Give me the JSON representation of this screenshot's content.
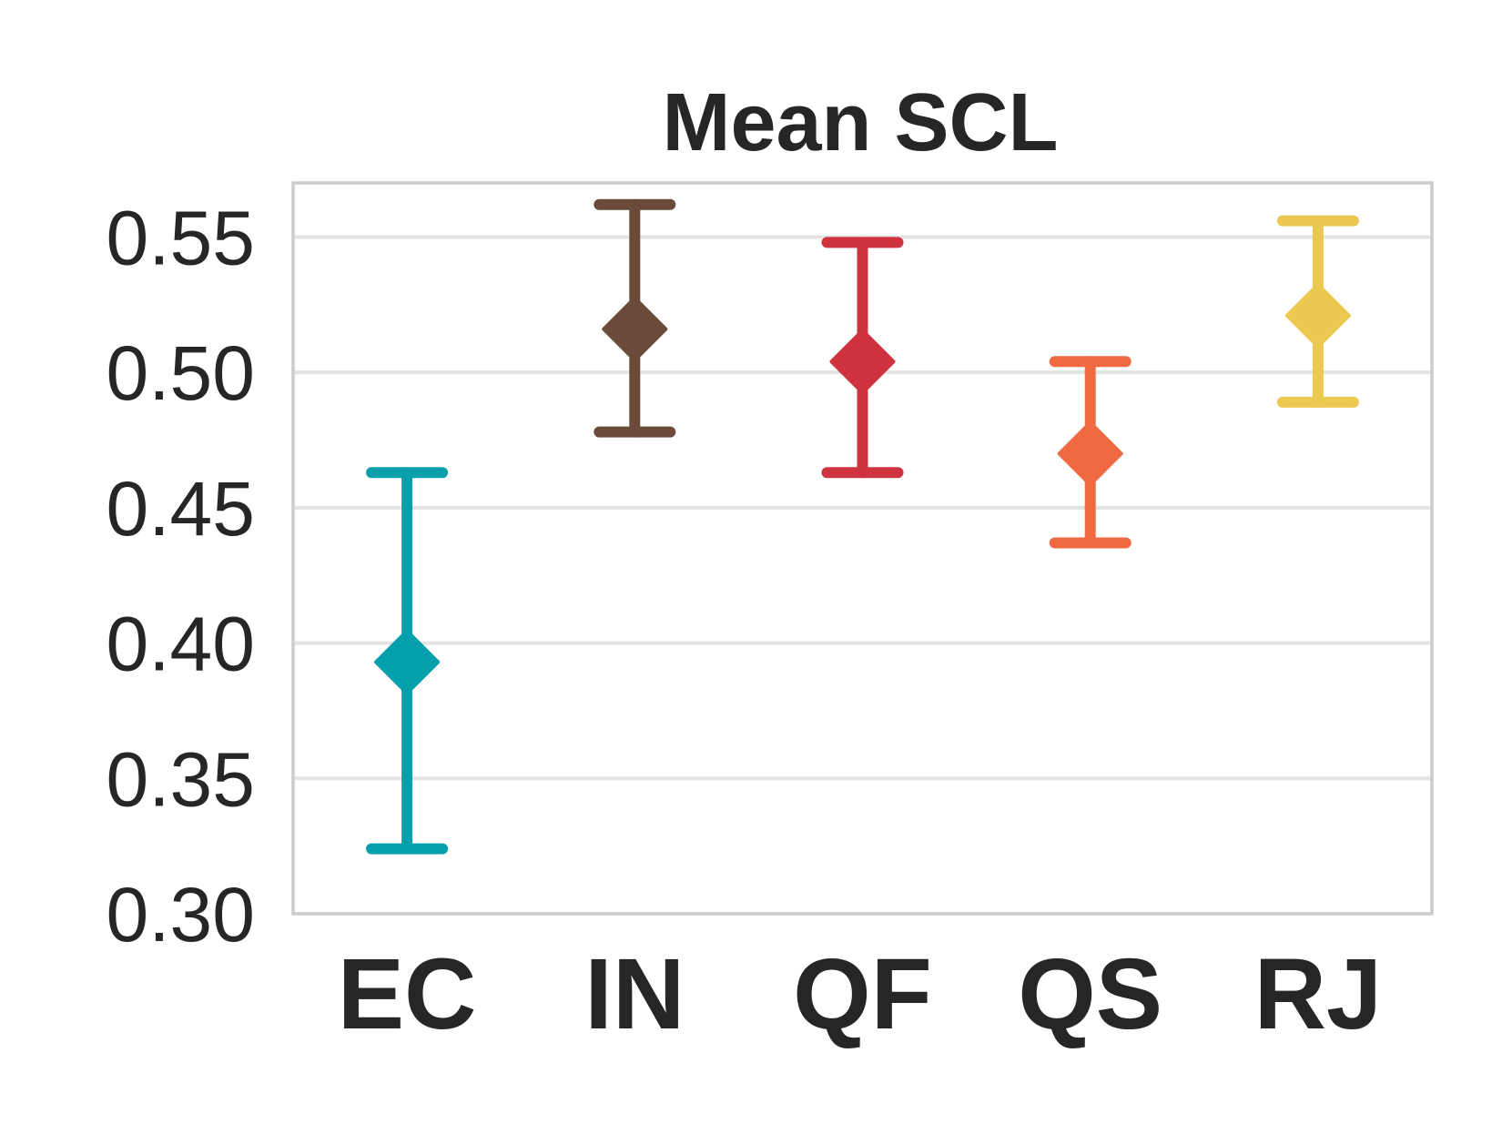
{
  "chart_data": {
    "type": "errorbar",
    "title": "Mean SCL",
    "xlabel": "",
    "ylabel": "",
    "ylim": [
      0.3,
      0.57
    ],
    "yticks": [
      "0.30",
      "0.35",
      "0.40",
      "0.45",
      "0.50",
      "0.55"
    ],
    "grid": true,
    "categories": [
      "EC",
      "IN",
      "QF",
      "QS",
      "RJ"
    ],
    "series": [
      {
        "name": "EC",
        "mean": 0.393,
        "lower": 0.324,
        "upper": 0.463,
        "color": "#06a0ad"
      },
      {
        "name": "IN",
        "mean": 0.516,
        "lower": 0.478,
        "upper": 0.562,
        "color": "#6b4a3a"
      },
      {
        "name": "QF",
        "mean": 0.504,
        "lower": 0.463,
        "upper": 0.548,
        "color": "#cf3340"
      },
      {
        "name": "QS",
        "mean": 0.47,
        "lower": 0.437,
        "upper": 0.504,
        "color": "#ef6a42"
      },
      {
        "name": "RJ",
        "mean": 0.521,
        "lower": 0.489,
        "upper": 0.556,
        "color": "#ebc84f"
      }
    ]
  }
}
